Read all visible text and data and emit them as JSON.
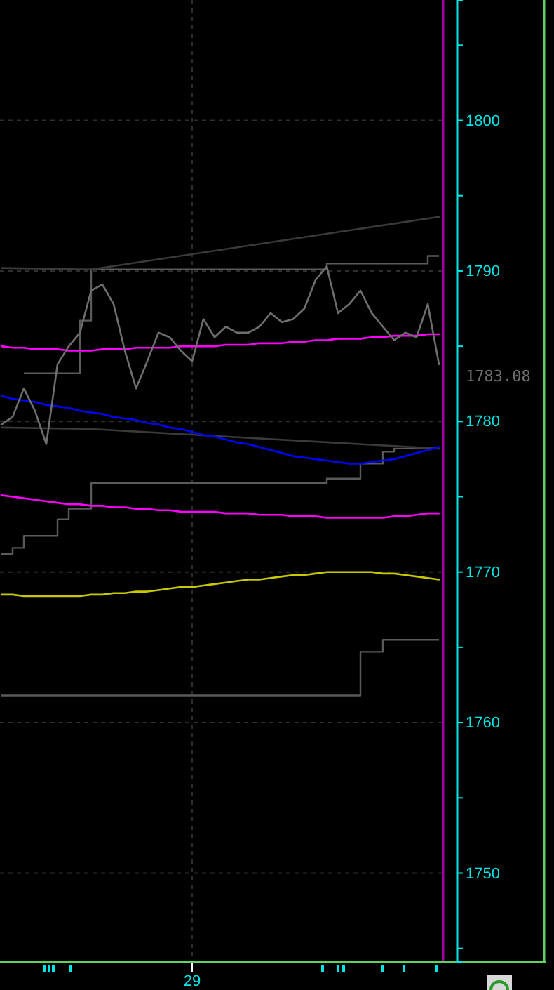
{
  "chart_data": {
    "type": "line",
    "categories": [
      null,
      null,
      null,
      null,
      null,
      null,
      null,
      null,
      null,
      null,
      null,
      null,
      null,
      null,
      null,
      null,
      null,
      "29",
      null,
      null,
      null,
      null,
      null,
      null,
      null,
      null,
      null,
      null,
      null,
      null,
      null,
      null,
      null,
      null,
      null,
      null,
      null,
      null,
      null,
      null
    ],
    "ylim": [
      1744.1,
      1808.0
    ],
    "yticks": [
      {
        "value": 1745,
        "label": null
      },
      1750,
      {
        "value": 1755,
        "label": null
      },
      1760,
      {
        "value": 1765,
        "label": null
      },
      1770,
      {
        "value": 1775,
        "label": null
      },
      1780,
      {
        "value": 1785,
        "label": null
      },
      1790,
      {
        "value": 1795,
        "label": null
      },
      1800,
      {
        "value": 1805,
        "label": null
      }
    ],
    "grid": true,
    "annotations": [
      "1783.08"
    ],
    "series": [
      {
        "type": "step",
        "color": "#5a5a5a",
        "values": [
          null,
          null,
          1783.2,
          1783.2,
          1783.2,
          1783.2,
          1783.2,
          1786.7,
          1790.1,
          1790.1,
          1790.1,
          1790.1,
          1790.1,
          1790.1,
          1790.1,
          1790.1,
          1790.1,
          1790.1,
          1790.1,
          1790.1,
          1790.1,
          1790.1,
          1790.1,
          1790.1,
          1790.1,
          1790.1,
          1790.1,
          1790.1,
          1790.1,
          1790.5,
          1790.5,
          1790.5,
          1790.5,
          1790.5,
          1790.5,
          1790.5,
          1790.5,
          1790.5,
          1791.0,
          1791.0
        ]
      },
      {
        "type": "step",
        "color": "#5a5a5a",
        "values": [
          1771.2,
          1771.6,
          1772.4,
          1772.4,
          1772.4,
          1773.5,
          1774.2,
          1774.2,
          1775.9,
          1775.9,
          1775.9,
          1775.9,
          1775.9,
          1775.9,
          1775.9,
          1775.9,
          1775.9,
          1775.9,
          1775.9,
          1775.9,
          1775.9,
          1775.9,
          1775.9,
          1775.9,
          1775.9,
          1775.9,
          1775.9,
          1775.9,
          1775.9,
          1776.2,
          1776.2,
          1776.2,
          1777.2,
          1777.2,
          1778.0,
          1778.2,
          1778.2,
          1778.2,
          1778.2,
          1778.2
        ]
      },
      {
        "type": "step",
        "color": "#5a5a5a",
        "values": [
          1761.8,
          1761.8,
          1761.8,
          1761.8,
          1761.8,
          1761.8,
          1761.8,
          1761.8,
          1761.8,
          1761.8,
          1761.8,
          1761.8,
          1761.8,
          1761.8,
          1761.8,
          1761.8,
          1761.8,
          1761.8,
          1761.8,
          1761.8,
          1761.8,
          1761.8,
          1761.8,
          1761.8,
          1761.8,
          1761.8,
          1761.8,
          1761.8,
          1761.8,
          1761.8,
          1761.8,
          1761.8,
          1764.7,
          1764.7,
          1765.5,
          1765.5,
          1765.5,
          1765.5,
          1765.5,
          1765.5
        ]
      },
      {
        "color": "#3a3a3a",
        "values": [
          1790.2,
          null,
          null,
          null,
          null,
          null,
          null,
          null,
          1790.1,
          null,
          null,
          null,
          null,
          null,
          null,
          null,
          null,
          null,
          null,
          null,
          null,
          null,
          null,
          null,
          null,
          null,
          null,
          null,
          null,
          null,
          null,
          null,
          null,
          null,
          null,
          null,
          null,
          null,
          null,
          1793.6
        ]
      },
      {
        "color": "#3a3a3a",
        "values": [
          1779.6,
          null,
          null,
          null,
          null,
          null,
          null,
          null,
          1779.5,
          null,
          null,
          null,
          null,
          null,
          null,
          null,
          null,
          null,
          null,
          null,
          null,
          null,
          null,
          null,
          null,
          null,
          null,
          null,
          null,
          null,
          null,
          null,
          null,
          null,
          null,
          null,
          null,
          null,
          null,
          1778.2
        ]
      },
      {
        "color": "#c8c800",
        "values": [
          1768.5,
          1768.5,
          1768.4,
          1768.4,
          1768.4,
          1768.4,
          1768.4,
          1768.4,
          1768.5,
          1768.5,
          1768.6,
          1768.6,
          1768.7,
          1768.7,
          1768.8,
          1768.9,
          1769.0,
          1769.0,
          1769.1,
          1769.2,
          1769.3,
          1769.4,
          1769.5,
          1769.5,
          1769.6,
          1769.7,
          1769.8,
          1769.8,
          1769.9,
          1770.0,
          1770.0,
          1770.0,
          1770.0,
          1770.0,
          1769.9,
          1769.9,
          1769.8,
          1769.7,
          1769.6,
          1769.5
        ]
      },
      {
        "color": "#ff00ff",
        "values": [
          1775.1,
          1775.0,
          1774.9,
          1774.8,
          1774.7,
          1774.6,
          1774.5,
          1774.5,
          1774.4,
          1774.4,
          1774.3,
          1774.3,
          1774.2,
          1774.2,
          1774.1,
          1774.1,
          1774.0,
          1774.0,
          1774.0,
          1774.0,
          1773.9,
          1773.9,
          1773.9,
          1773.8,
          1773.8,
          1773.8,
          1773.7,
          1773.7,
          1773.7,
          1773.6,
          1773.6,
          1773.6,
          1773.6,
          1773.6,
          1773.6,
          1773.7,
          1773.7,
          1773.8,
          1773.9,
          1773.9
        ]
      },
      {
        "color": "#0000ff",
        "values": [
          1781.7,
          1781.5,
          1781.4,
          1781.3,
          1781.1,
          1781.0,
          1780.9,
          1780.7,
          1780.6,
          1780.5,
          1780.3,
          1780.2,
          1780.1,
          1779.9,
          1779.8,
          1779.6,
          1779.5,
          1779.3,
          1779.1,
          1779.0,
          1778.8,
          1778.6,
          1778.5,
          1778.3,
          1778.1,
          1777.9,
          1777.7,
          1777.6,
          1777.5,
          1777.4,
          1777.3,
          1777.2,
          1777.2,
          1777.3,
          1777.4,
          1777.5,
          1777.7,
          1777.9,
          1778.1,
          1778.3
        ]
      },
      {
        "color": "#ff00ff",
        "values": [
          1785.0,
          1784.9,
          1784.9,
          1784.8,
          1784.8,
          1784.8,
          1784.7,
          1784.7,
          1784.7,
          1784.8,
          1784.8,
          1784.8,
          1784.9,
          1784.9,
          1784.9,
          1784.9,
          1785.0,
          1785.0,
          1785.0,
          1785.0,
          1785.1,
          1785.1,
          1785.1,
          1785.2,
          1785.2,
          1785.2,
          1785.3,
          1785.3,
          1785.4,
          1785.4,
          1785.5,
          1785.5,
          1785.5,
          1785.6,
          1785.6,
          1785.7,
          1785.7,
          1785.7,
          1785.8,
          1785.8
        ]
      },
      {
        "color": "#6e6e6e",
        "values": [
          1779.8,
          1780.3,
          1782.2,
          1780.7,
          1778.5,
          1783.8,
          1785.0,
          1785.9,
          1788.7,
          1789.1,
          1787.8,
          1784.7,
          1782.2,
          1784.0,
          1785.9,
          1785.6,
          1784.7,
          1784.0,
          1786.8,
          1785.6,
          1786.3,
          1785.9,
          1785.9,
          1786.3,
          1787.2,
          1786.6,
          1786.8,
          1787.5,
          1789.4,
          1790.3,
          1787.2,
          1787.8,
          1788.7,
          1787.2,
          1786.3,
          1785.4,
          1785.9,
          1785.6,
          1787.8,
          1783.8
        ]
      }
    ]
  }
}
